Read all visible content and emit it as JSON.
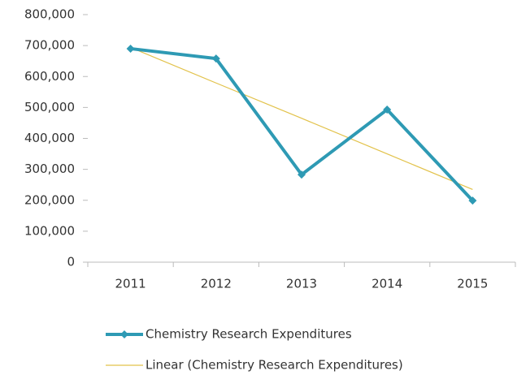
{
  "chart_data": {
    "type": "line",
    "categories": [
      "2011",
      "2012",
      "2013",
      "2014",
      "2015"
    ],
    "series": [
      {
        "name": "Chemistry Research Expenditures",
        "color": "#2e9ab4",
        "values": [
          690000,
          658000,
          283000,
          493000,
          199000
        ]
      },
      {
        "name": "Linear (Chemistry Research Expenditures)",
        "color": "#e2c24a",
        "values": [
          694000,
          579000,
          465000,
          350000,
          235000
        ]
      }
    ],
    "ylim": [
      0,
      800000
    ],
    "yticks": [
      {
        "value": 0,
        "label": "0"
      },
      {
        "value": 100000,
        "label": "100,000"
      },
      {
        "value": 200000,
        "label": "200,000"
      },
      {
        "value": 300000,
        "label": "300,000"
      },
      {
        "value": 400000,
        "label": "400,000"
      },
      {
        "value": 500000,
        "label": "500,000"
      },
      {
        "value": 600000,
        "label": "600,000"
      },
      {
        "value": 700000,
        "label": "700,000"
      },
      {
        "value": 800000,
        "label": "800,000"
      }
    ],
    "grid": false,
    "legend": "bottom"
  }
}
